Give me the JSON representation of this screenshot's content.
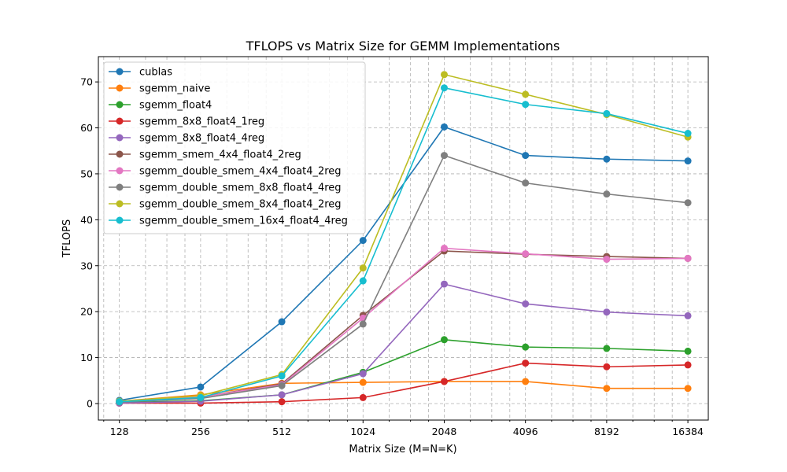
{
  "chart_data": {
    "type": "line",
    "title": "TFLOPS vs Matrix Size for GEMM Implementations",
    "xlabel": "Matrix Size (M=N=K)",
    "ylabel": "TFLOPS",
    "xscale": "log2",
    "x": [
      128,
      256,
      512,
      1024,
      2048,
      4096,
      8192,
      16384
    ],
    "x_tick_labels": [
      "128",
      "256",
      "512",
      "1024",
      "2048",
      "4096",
      "8192",
      "16384"
    ],
    "xlim": [
      107,
      19500
    ],
    "ylim": [
      -3.6,
      75.5
    ],
    "yticks": [
      0,
      10,
      20,
      30,
      40,
      50,
      60,
      70
    ],
    "grid": true,
    "legend_position": "top-left",
    "series": [
      {
        "name": "cublas",
        "color": "#1f77b4",
        "values": [
          0.7,
          3.6,
          17.8,
          35.5,
          60.2,
          54.0,
          53.2,
          52.8
        ]
      },
      {
        "name": "sgemm_naive",
        "color": "#ff7f0e",
        "values": [
          0.5,
          1.9,
          4.4,
          4.6,
          4.8,
          4.8,
          3.3,
          3.3
        ]
      },
      {
        "name": "sgemm_float4",
        "color": "#2ca02c",
        "values": [
          0.2,
          0.6,
          1.9,
          6.8,
          13.9,
          12.3,
          12.0,
          11.4
        ]
      },
      {
        "name": "sgemm_8x8_float4_1reg",
        "color": "#d62728",
        "values": [
          0.1,
          0.1,
          0.4,
          1.3,
          4.8,
          8.8,
          8.0,
          8.4
        ]
      },
      {
        "name": "sgemm_8x8_float4_4reg",
        "color": "#9467bd",
        "values": [
          0.1,
          0.5,
          1.9,
          6.5,
          26.0,
          21.7,
          19.9,
          19.1
        ]
      },
      {
        "name": "sgemm_smem_4x4_float4_2reg",
        "color": "#8c564b",
        "values": [
          0.4,
          1.4,
          4.3,
          19.2,
          33.2,
          32.5,
          32.0,
          31.6
        ]
      },
      {
        "name": "sgemm_double_smem_4x4_float4_2reg",
        "color": "#e377c2",
        "values": [
          0.4,
          1.4,
          4.1,
          18.6,
          33.8,
          32.6,
          31.4,
          31.6
        ]
      },
      {
        "name": "sgemm_double_smem_8x8_float4_4reg",
        "color": "#7f7f7f",
        "values": [
          0.3,
          1.1,
          3.9,
          17.3,
          54.0,
          48.0,
          45.6,
          43.7
        ]
      },
      {
        "name": "sgemm_double_smem_8x4_float4_2reg",
        "color": "#bcbd22",
        "values": [
          0.5,
          1.7,
          6.3,
          29.5,
          71.6,
          67.3,
          62.9,
          58.0
        ]
      },
      {
        "name": "sgemm_double_smem_16x4_float4_4reg",
        "color": "#17becf",
        "values": [
          0.4,
          1.3,
          6.0,
          26.7,
          68.7,
          65.1,
          63.1,
          58.8
        ]
      }
    ]
  }
}
